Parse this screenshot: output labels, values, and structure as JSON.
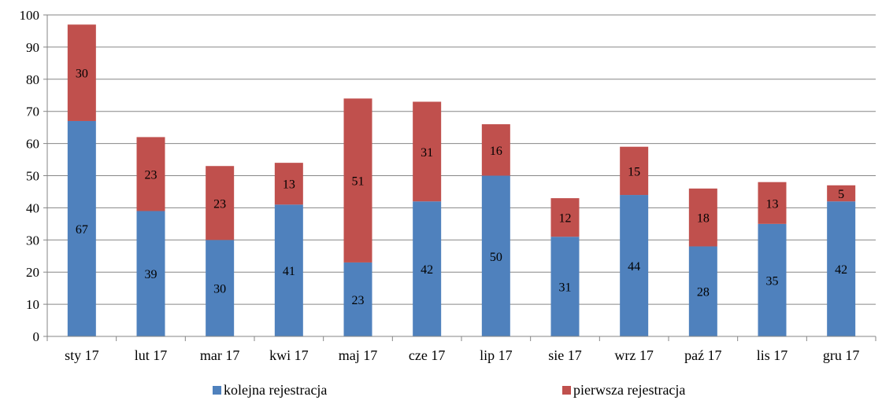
{
  "chart_data": {
    "type": "bar",
    "stacked": true,
    "categories": [
      "sty 17",
      "lut 17",
      "mar 17",
      "kwi 17",
      "maj 17",
      "cze 17",
      "lip 17",
      "sie 17",
      "wrz 17",
      "paź 17",
      "lis 17",
      "gru 17"
    ],
    "series": [
      {
        "name": "kolejna rejestracja",
        "color": "#4f81bd",
        "values": [
          67,
          39,
          30,
          41,
          23,
          42,
          50,
          31,
          44,
          28,
          35,
          42
        ]
      },
      {
        "name": "pierwsza rejestracja",
        "color": "#c0504d",
        "values": [
          30,
          23,
          23,
          13,
          51,
          31,
          16,
          12,
          15,
          18,
          13,
          5
        ]
      }
    ],
    "ylim": [
      0,
      100
    ],
    "yticks": [
      0,
      10,
      20,
      30,
      40,
      50,
      60,
      70,
      80,
      90,
      100
    ],
    "grid": true,
    "legend_position": "bottom",
    "data_labels": true
  }
}
